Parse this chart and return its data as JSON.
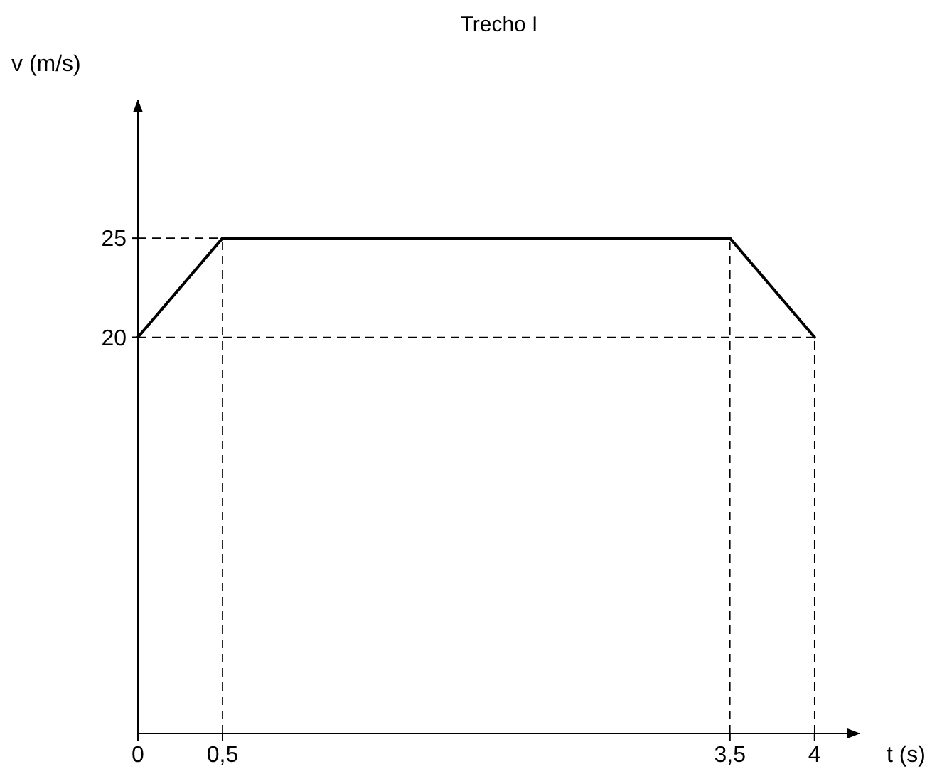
{
  "chart_data": {
    "type": "line",
    "title": "Trecho I",
    "xlabel": "t (s)",
    "ylabel": "v (m/s)",
    "x": [
      0,
      0.5,
      3.5,
      4
    ],
    "values": [
      20,
      25,
      25,
      20
    ],
    "color": "#000000",
    "xlim": [
      0,
      4.27
    ],
    "ylim": [
      0,
      32
    ],
    "xticks": [
      0,
      {
        "value": 0.5,
        "label": "0,5"
      },
      {
        "value": 3.5,
        "label": "3,5"
      },
      4
    ],
    "yticks": [
      20,
      25
    ],
    "ref_lines": [
      {
        "axis": "x",
        "value": 0.5,
        "line_style": "dashed",
        "color": "#000000"
      },
      {
        "axis": "x",
        "value": 3.5,
        "line_style": "dashed",
        "color": "#000000"
      },
      {
        "axis": "x",
        "value": 4,
        "line_style": "dashed",
        "color": "#000000"
      },
      {
        "axis": "y",
        "value": 20,
        "line_style": "dashed",
        "color": "#000000"
      },
      {
        "axis": "y",
        "value": 25,
        "line_style": "dashed",
        "color": "#000000"
      }
    ],
    "marker": "none",
    "line_style": "solid"
  }
}
